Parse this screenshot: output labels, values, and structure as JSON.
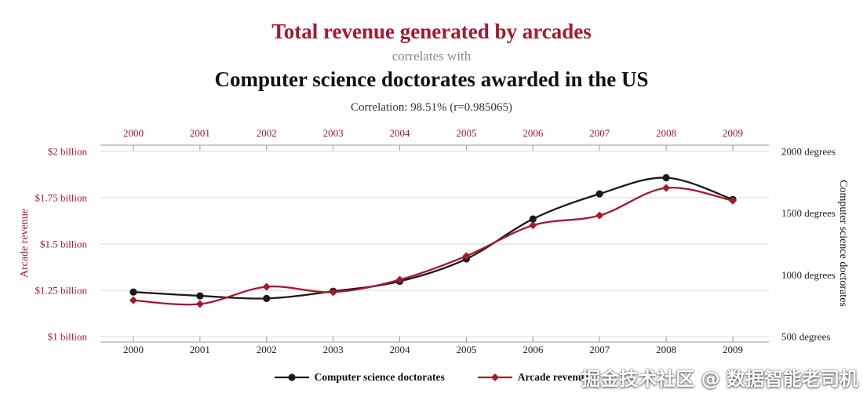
{
  "header": {
    "title1": "Total revenue generated by arcades",
    "connector": "correlates with",
    "title2": "Computer science doctorates awarded in the US",
    "correlation": "Correlation: 98.51% (r=0.985065)"
  },
  "colors": {
    "red": "#a5192e",
    "black": "#1a1a1a",
    "grid": "#d9d9d9",
    "axis": "#999999",
    "connector_gray": "#8a8a8a"
  },
  "chart_data": {
    "type": "line",
    "x": [
      2000,
      2001,
      2002,
      2003,
      2004,
      2005,
      2006,
      2007,
      2008,
      2009
    ],
    "series": [
      {
        "name": "Computer science doctorates",
        "axis": "right",
        "color": "#1a1a1a",
        "marker": "circle",
        "values": [
          861,
          830,
          809,
          867,
          948,
          1129,
          1453,
          1656,
          1787,
          1611
        ]
      },
      {
        "name": "Arcade revenue",
        "axis": "left",
        "color": "#a5192e",
        "marker": "diamond",
        "values": [
          1.196,
          1.176,
          1.269,
          1.24,
          1.307,
          1.435,
          1.601,
          1.654,
          1.803,
          1.734
        ]
      }
    ],
    "left_axis": {
      "label": "Arcade revenue",
      "ticks": [
        "$1 billion",
        "$1.25 billion",
        "$1.5 billion",
        "$1.75 billion",
        "$2 billion"
      ],
      "tick_values": [
        1,
        1.25,
        1.5,
        1.75,
        2
      ],
      "range": [
        1,
        2
      ]
    },
    "right_axis": {
      "label": "Computer science doctorates",
      "ticks": [
        "500 degrees",
        "1000 degrees",
        "1500 degrees",
        "2000 degrees"
      ],
      "tick_values": [
        500,
        1000,
        1500,
        2000
      ],
      "range": [
        500,
        2000
      ]
    },
    "grid": true,
    "legend_position": "bottom"
  },
  "watermark": "掘金技术社区 @ 数据智能老司机"
}
